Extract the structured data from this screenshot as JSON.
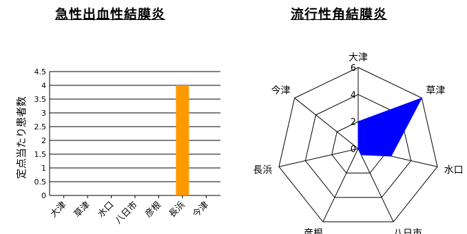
{
  "chart_data": [
    {
      "type": "bar",
      "title": "急性出血性結膜炎",
      "ylabel": "定点当たり患者数",
      "xlabel": "",
      "categories": [
        "大津",
        "草津",
        "水口",
        "八日市",
        "彦根",
        "長浜",
        "今津"
      ],
      "values": [
        0,
        0,
        0,
        0,
        0,
        4,
        0
      ],
      "ylim": [
        0,
        4.5
      ],
      "yticks": [
        "0",
        "0.5",
        "1",
        "1.5",
        "2",
        "2.5",
        "3",
        "3.5",
        "4",
        "4.5"
      ],
      "grid": true,
      "bar_color": "#ff9900"
    },
    {
      "type": "radar",
      "title": "流行性角結膜炎",
      "categories": [
        "大津",
        "草津",
        "水口",
        "八日市",
        "彦根",
        "長浜",
        "今津"
      ],
      "values": [
        2,
        6,
        2.5,
        0.5,
        0,
        0,
        0
      ],
      "rmax": 6,
      "rticks": [
        "0",
        "2",
        "4",
        "6"
      ],
      "fill_color": "#0000ff"
    }
  ]
}
